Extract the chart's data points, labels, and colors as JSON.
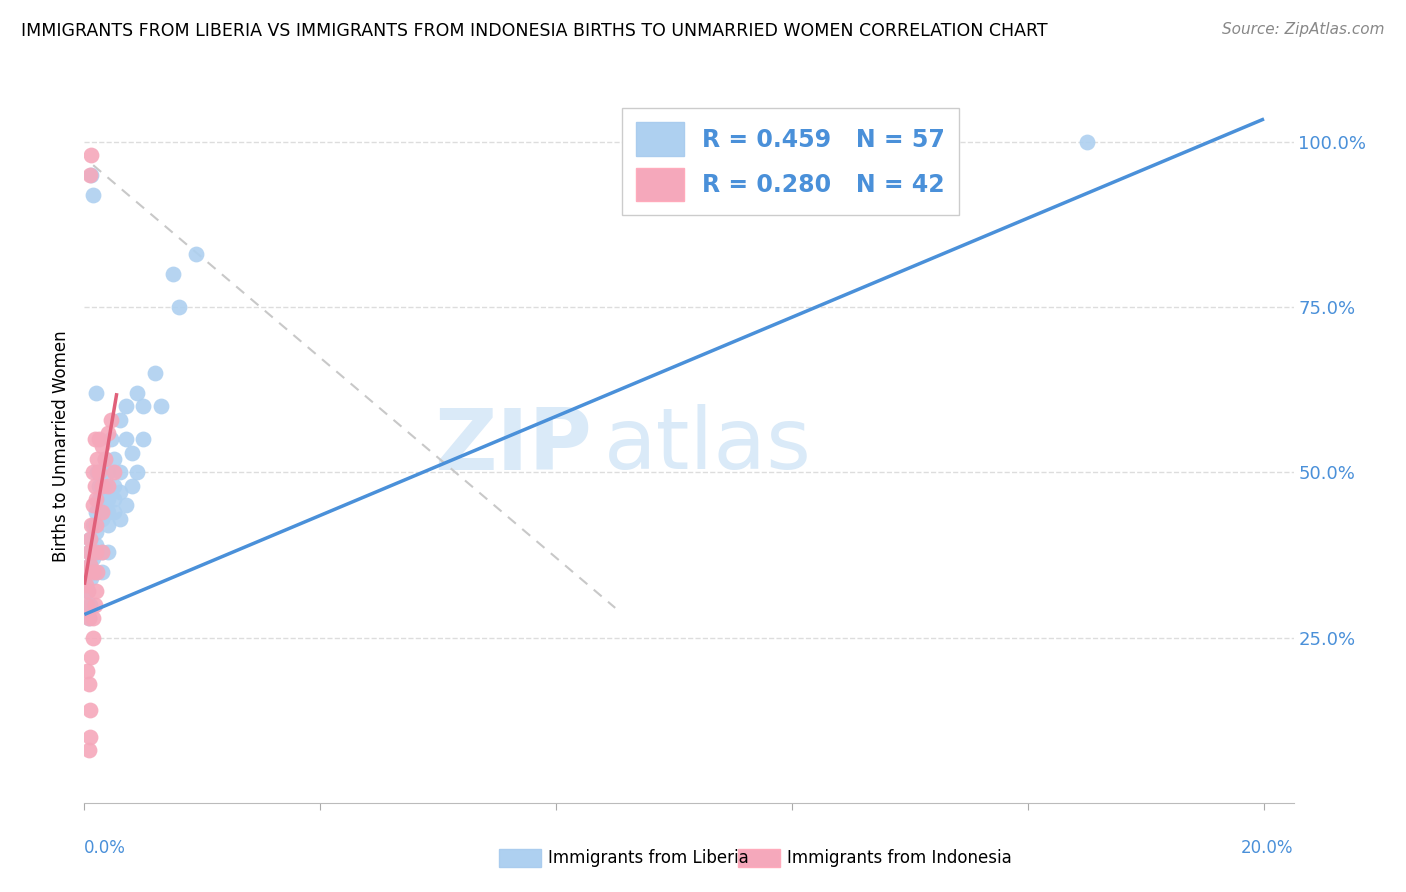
{
  "title": "IMMIGRANTS FROM LIBERIA VS IMMIGRANTS FROM INDONESIA BIRTHS TO UNMARRIED WOMEN CORRELATION CHART",
  "source": "Source: ZipAtlas.com",
  "ylabel": "Births to Unmarried Women",
  "legend_blue_R": "0.459",
  "legend_blue_N": "57",
  "legend_pink_R": "0.280",
  "legend_pink_N": "42",
  "legend_label_blue": "Immigrants from Liberia",
  "legend_label_pink": "Immigrants from Indonesia",
  "blue_color": "#aed0f0",
  "pink_color": "#f5a8bb",
  "trendline_blue_color": "#4a90d9",
  "trendline_pink_color": "#e0607a",
  "trendline_dashed_color": "#c8c8c8",
  "background_color": "#ffffff",
  "grid_color": "#dddddd",
  "blue_scatter_x": [
    0.0008,
    0.001,
    0.001,
    0.0012,
    0.0015,
    0.0015,
    0.0018,
    0.002,
    0.002,
    0.002,
    0.002,
    0.0022,
    0.0025,
    0.0025,
    0.003,
    0.003,
    0.003,
    0.003,
    0.003,
    0.003,
    0.0035,
    0.0035,
    0.004,
    0.004,
    0.004,
    0.004,
    0.004,
    0.0045,
    0.005,
    0.005,
    0.005,
    0.005,
    0.006,
    0.006,
    0.006,
    0.006,
    0.007,
    0.007,
    0.007,
    0.008,
    0.008,
    0.009,
    0.009,
    0.01,
    0.01,
    0.012,
    0.013,
    0.015,
    0.016,
    0.019,
    0.0005,
    0.0008,
    0.001,
    0.0012,
    0.0015,
    0.002,
    0.17
  ],
  "blue_scatter_y": [
    0.38,
    0.36,
    0.4,
    0.34,
    0.37,
    0.42,
    0.35,
    0.38,
    0.41,
    0.44,
    0.39,
    0.5,
    0.46,
    0.48,
    0.43,
    0.47,
    0.5,
    0.35,
    0.38,
    0.45,
    0.52,
    0.48,
    0.44,
    0.46,
    0.5,
    0.38,
    0.42,
    0.55,
    0.48,
    0.52,
    0.44,
    0.46,
    0.47,
    0.43,
    0.5,
    0.58,
    0.6,
    0.55,
    0.45,
    0.53,
    0.48,
    0.62,
    0.5,
    0.6,
    0.55,
    0.65,
    0.6,
    0.8,
    0.75,
    0.83,
    0.32,
    0.28,
    0.3,
    0.95,
    0.92,
    0.62,
    1.0
  ],
  "pink_scatter_x": [
    0.0003,
    0.0005,
    0.0005,
    0.0007,
    0.0008,
    0.0008,
    0.001,
    0.001,
    0.001,
    0.0012,
    0.0012,
    0.0015,
    0.0015,
    0.0015,
    0.0018,
    0.0018,
    0.002,
    0.002,
    0.002,
    0.0022,
    0.0025,
    0.0025,
    0.003,
    0.003,
    0.003,
    0.0035,
    0.004,
    0.004,
    0.0045,
    0.005,
    0.0005,
    0.0008,
    0.001,
    0.0012,
    0.0015,
    0.0015,
    0.0018,
    0.002,
    0.0022,
    0.003,
    0.0008,
    0.001
  ],
  "pink_scatter_y": [
    0.33,
    0.3,
    0.35,
    0.32,
    0.28,
    0.38,
    0.36,
    0.4,
    0.95,
    0.42,
    0.98,
    0.35,
    0.45,
    0.5,
    0.48,
    0.55,
    0.38,
    0.42,
    0.46,
    0.52,
    0.5,
    0.55,
    0.44,
    0.48,
    0.54,
    0.52,
    0.48,
    0.56,
    0.58,
    0.5,
    0.2,
    0.18,
    0.14,
    0.22,
    0.25,
    0.28,
    0.3,
    0.32,
    0.35,
    0.38,
    0.08,
    0.1
  ]
}
